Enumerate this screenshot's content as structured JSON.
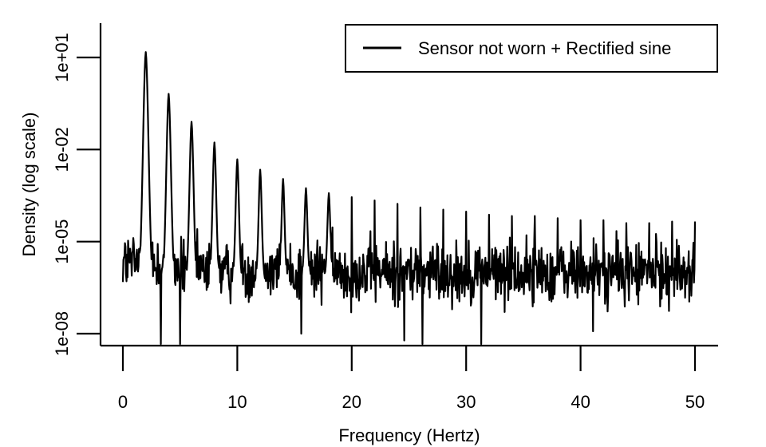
{
  "chart_data": {
    "type": "line",
    "xlabel": "Frequency (Hertz)",
    "ylabel": "Density (log scale)",
    "xlim": [
      -2,
      52
    ],
    "ylim_log10": [
      -8.25,
      1.75
    ],
    "y_scale": "log",
    "x_ticks": [
      0,
      10,
      20,
      30,
      40,
      50
    ],
    "x_tick_labels": [
      "0",
      "10",
      "20",
      "30",
      "40",
      "50"
    ],
    "y_ticks": [
      1e-08,
      1e-05,
      0.01,
      10
    ],
    "y_tick_labels": [
      "1e-08",
      "1e-05",
      "1e-02",
      "1e+01"
    ],
    "grid": false,
    "legend_position": "top-right",
    "series": [
      {
        "name": "Sensor not worn + Rectified sine",
        "color": "#000000",
        "noise_floor": 1e-06,
        "peaks": [
          {
            "x": 2,
            "y": 15
          },
          {
            "x": 4,
            "y": 0.65
          },
          {
            "x": 6,
            "y": 0.08
          },
          {
            "x": 8,
            "y": 0.017
          },
          {
            "x": 10,
            "y": 0.0048
          },
          {
            "x": 12,
            "y": 0.0022
          },
          {
            "x": 14,
            "y": 0.0011
          },
          {
            "x": 16,
            "y": 0.00055
          },
          {
            "x": 18,
            "y": 0.00038
          },
          {
            "x": 20,
            "y": 0.00028
          },
          {
            "x": 22,
            "y": 0.00022
          },
          {
            "x": 24,
            "y": 0.00017
          },
          {
            "x": 26,
            "y": 0.00013
          },
          {
            "x": 28,
            "y": 0.00011
          },
          {
            "x": 30,
            "y": 9.5e-05
          },
          {
            "x": 32,
            "y": 7.5e-05
          },
          {
            "x": 34,
            "y": 6.8e-05
          },
          {
            "x": 36,
            "y": 6.8e-05
          },
          {
            "x": 38,
            "y": 5.8e-05
          },
          {
            "x": 40,
            "y": 5e-05
          },
          {
            "x": 42,
            "y": 5e-05
          },
          {
            "x": 44,
            "y": 4e-05
          },
          {
            "x": 46,
            "y": 4e-05
          },
          {
            "x": 48,
            "y": 4.5e-05
          },
          {
            "x": 50,
            "y": 4.5e-05
          }
        ],
        "deep_dips": [
          {
            "x": 3.3,
            "y": 3e-09
          },
          {
            "x": 5.0,
            "y": 4e-09
          },
          {
            "x": 15.6,
            "y": 1e-08
          },
          {
            "x": 24.6,
            "y": 6e-09
          },
          {
            "x": 26.2,
            "y": 2e-09
          },
          {
            "x": 31.3,
            "y": 3e-09
          },
          {
            "x": 41.1,
            "y": 1.2e-08
          }
        ]
      }
    ]
  }
}
